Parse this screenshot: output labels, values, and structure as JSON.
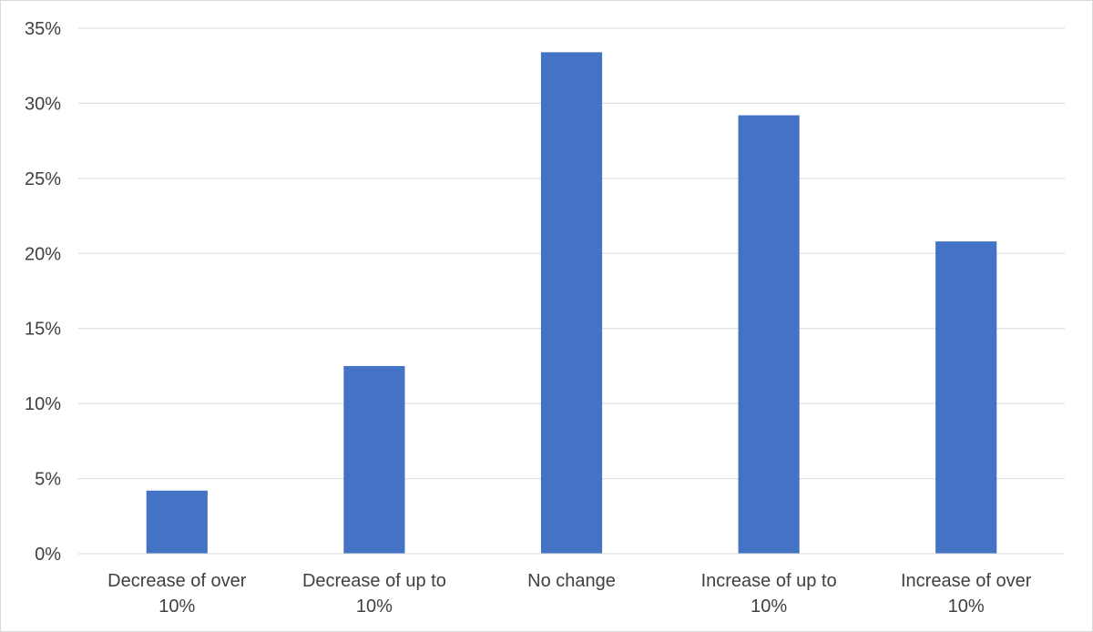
{
  "chart_data": {
    "type": "bar",
    "title": "",
    "xlabel": "",
    "ylabel": "",
    "categories": [
      [
        "Decrease of over",
        "10%"
      ],
      [
        "Decrease of up to",
        "10%"
      ],
      [
        "No change"
      ],
      [
        "Increase of up to",
        "10%"
      ],
      [
        "Increase of over",
        "10%"
      ]
    ],
    "values": [
      4.2,
      12.5,
      33.4,
      29.2,
      20.8
    ],
    "ylim": [
      0,
      35
    ],
    "yticks": [
      0,
      5,
      10,
      15,
      20,
      25,
      30,
      35
    ],
    "ytick_labels": [
      "0%",
      "5%",
      "10%",
      "15%",
      "20%",
      "25%",
      "30%",
      "35%"
    ],
    "grid": true,
    "legend": "none",
    "colors": {
      "bar": "#4472c4",
      "grid": "#d9d9d9",
      "axis": "#d9d9d9",
      "text": "#404040"
    }
  }
}
